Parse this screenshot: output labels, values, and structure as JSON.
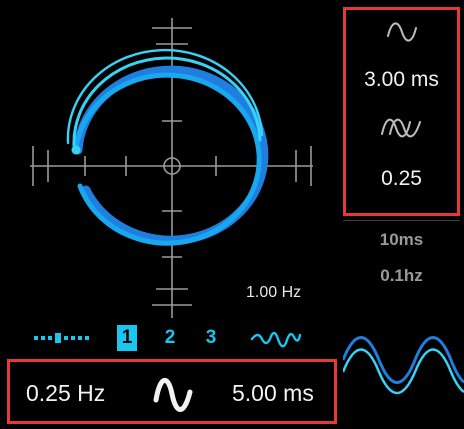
{
  "scope": {
    "rate_label": "1.00 Hz"
  },
  "modes": {
    "items": [
      "1",
      "2",
      "3"
    ],
    "active_index": 0
  },
  "bottom": {
    "rate_value": "0.25 Hz",
    "time_value": "5.00 ms"
  },
  "side": {
    "value_1": "3.00 ms",
    "value_2": "0.25",
    "dim_1": "10ms",
    "dim_2": "0.1hz"
  },
  "colors": {
    "accent": "#19c6f0",
    "accent_dark": "#1e7fe0",
    "highlight_box": "#e53935",
    "crosshair": "#9a9a9a"
  },
  "icons": {
    "bottom_wave": "sine-wave-icon",
    "side_wave_1": "sine-wave-icon",
    "side_wave_2": "double-sine-icon",
    "mode_wave": "squiggle-wave-icon",
    "dot_slider": "dotted-slider-icon"
  }
}
